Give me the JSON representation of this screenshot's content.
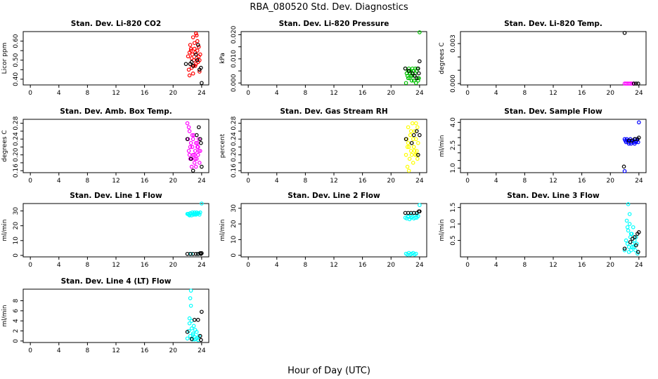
{
  "figure": {
    "title": "RBA_080520  Std. Dev. Diagnostics",
    "xlabel": "Hour of Day (UTC)"
  },
  "chart_data": [
    {
      "type": "scatter",
      "title": "Stan. Dev. Li-820 CO2",
      "ylabel": "Licor ppm",
      "xlim": [
        -1,
        25
      ],
      "ylim": [
        0.37,
        0.65
      ],
      "xticks": [
        0,
        4,
        8,
        12,
        16,
        20,
        24
      ],
      "yticks": [
        0.4,
        0.45,
        0.5,
        0.55,
        0.6
      ],
      "ytick_labels": [
        "0.40",
        "",
        "0.50",
        "",
        "0.60"
      ],
      "series": [
        {
          "name": "red",
          "color": "#ff0000",
          "x": [
            22.1,
            22.3,
            22.4,
            22.5,
            22.6,
            22.7,
            22.8,
            22.9,
            23.0,
            23.1,
            23.2,
            23.3,
            23.4,
            23.5,
            23.6,
            23.7,
            23.8,
            22.2,
            22.4,
            22.6,
            22.8,
            23.0,
            23.2,
            23.4,
            23.6,
            22.5,
            22.9,
            23.3,
            23.7,
            22.3,
            23.1
          ],
          "y": [
            0.52,
            0.54,
            0.48,
            0.55,
            0.46,
            0.53,
            0.62,
            0.5,
            0.56,
            0.47,
            0.64,
            0.51,
            0.6,
            0.49,
            0.57,
            0.44,
            0.53,
            0.45,
            0.58,
            0.51,
            0.43,
            0.59,
            0.48,
            0.55,
            0.52,
            0.56,
            0.47,
            0.63,
            0.5,
            0.42,
            0.54
          ]
        },
        {
          "name": "black",
          "color": "#000000",
          "x": [
            21.8,
            22.4,
            22.8,
            23.2,
            23.5,
            23.7,
            23.9,
            24.0,
            23.4,
            22.6
          ],
          "y": [
            0.48,
            0.48,
            0.47,
            0.53,
            0.58,
            0.45,
            0.46,
            0.38,
            0.5,
            0.49
          ]
        }
      ]
    },
    {
      "type": "scatter",
      "title": "Stan. Dev. Li-820 Pressure",
      "ylabel": "kPa",
      "xlim": [
        -1,
        25
      ],
      "ylim": [
        -0.0008,
        0.0213
      ],
      "xticks": [
        0,
        4,
        8,
        12,
        16,
        20,
        24
      ],
      "yticks": [
        0.0,
        0.005,
        0.01,
        0.015,
        0.02
      ],
      "ytick_labels": [
        "0.000",
        "",
        "0.010",
        "",
        "0.020"
      ],
      "series": [
        {
          "name": "green",
          "color": "#00c000",
          "x": [
            22.0,
            22.2,
            22.4,
            22.6,
            22.8,
            23.0,
            23.2,
            23.4,
            23.6,
            23.8,
            22.1,
            22.3,
            22.5,
            22.7,
            22.9,
            23.1,
            23.3,
            23.5,
            23.7,
            23.9,
            22.2,
            22.6,
            23.0,
            23.4,
            23.8,
            24.0,
            22.4,
            23.2
          ],
          "y": [
            0.006,
            0.004,
            0.005,
            0.002,
            0.003,
            0.006,
            0.001,
            0.004,
            0.005,
            0.002,
            0.0,
            0.003,
            0.006,
            0.004,
            0.001,
            0.005,
            0.003,
            0.0,
            0.006,
            0.002,
            0.004,
            0.005,
            0.003,
            0.006,
            0.001,
            0.021,
            0.002,
            0.005
          ]
        },
        {
          "name": "black",
          "color": "#000000",
          "x": [
            22.0,
            22.5,
            23.0,
            23.3,
            23.6,
            23.9,
            24.0,
            23.8
          ],
          "y": [
            0.006,
            0.005,
            0.004,
            0.003,
            0.002,
            0.004,
            0.009,
            0.006
          ]
        }
      ]
    },
    {
      "type": "scatter",
      "title": "Stan. Dev. Li-820 Temp.",
      "ylabel": "degrees C",
      "xlim": [
        -1,
        25
      ],
      "ylim": [
        -0.0001,
        0.0039
      ],
      "xticks": [
        0,
        4,
        8,
        12,
        16,
        20,
        24
      ],
      "yticks": [
        0.0,
        0.001,
        0.002,
        0.003
      ],
      "ytick_labels": [
        "0.000",
        "",
        "",
        "0.003"
      ],
      "series": [
        {
          "name": "magenta",
          "color": "#ff00ff",
          "x": [
            22.0,
            22.2,
            22.4,
            22.6,
            22.8,
            23.0,
            23.2
          ],
          "y": [
            0.0,
            0.0,
            0.0,
            0.0,
            0.0,
            0.0,
            0.0
          ]
        },
        {
          "name": "black",
          "color": "#000000",
          "x": [
            22.0,
            23.3,
            23.6,
            23.9
          ],
          "y": [
            0.0038,
            0.0,
            0.0,
            0.0
          ]
        }
      ]
    },
    {
      "type": "scatter",
      "title": "Stan. Dev. Amb. Box Temp.",
      "ylabel": "degrees C",
      "xlim": [
        -1,
        25
      ],
      "ylim": [
        0.155,
        0.29
      ],
      "xticks": [
        0,
        4,
        8,
        12,
        16,
        20,
        24
      ],
      "yticks": [
        0.16,
        0.18,
        0.2,
        0.22,
        0.24,
        0.26,
        0.28
      ],
      "ytick_labels": [
        "0.16",
        "",
        "0.20",
        "",
        "0.24",
        "",
        "0.28"
      ],
      "series": [
        {
          "name": "magenta",
          "color": "#ff00ff",
          "x": [
            22.0,
            22.1,
            22.2,
            22.3,
            22.4,
            22.5,
            22.6,
            22.7,
            22.8,
            22.9,
            23.0,
            23.1,
            23.2,
            23.3,
            23.4,
            23.5,
            23.6,
            23.7,
            23.8,
            22.2,
            22.4,
            22.6,
            22.8,
            23.0,
            23.2,
            23.4,
            23.6,
            22.3,
            22.7,
            23.1,
            23.5
          ],
          "y": [
            0.28,
            0.24,
            0.21,
            0.26,
            0.19,
            0.23,
            0.17,
            0.22,
            0.2,
            0.25,
            0.18,
            0.21,
            0.23,
            0.19,
            0.22,
            0.2,
            0.24,
            0.18,
            0.21,
            0.27,
            0.22,
            0.19,
            0.24,
            0.2,
            0.17,
            0.23,
            0.21,
            0.2,
            0.25,
            0.19,
            0.22
          ]
        },
        {
          "name": "black",
          "color": "#000000",
          "x": [
            22.0,
            22.5,
            22.8,
            23.3,
            23.6,
            23.8,
            23.9,
            24.0
          ],
          "y": [
            0.24,
            0.19,
            0.16,
            0.25,
            0.27,
            0.24,
            0.23,
            0.17
          ]
        }
      ]
    },
    {
      "type": "scatter",
      "title": "Stan. Dev. Gas Stream RH",
      "ylabel": "percent",
      "xlim": [
        -1,
        25
      ],
      "ylim": [
        0.155,
        0.29
      ],
      "xticks": [
        0,
        4,
        8,
        12,
        16,
        20,
        24
      ],
      "yticks": [
        0.16,
        0.18,
        0.2,
        0.22,
        0.24,
        0.26,
        0.28
      ],
      "ytick_labels": [
        "0.16",
        "",
        "0.20",
        "",
        "0.24",
        "",
        "0.28"
      ],
      "series": [
        {
          "name": "yellow",
          "color": "#ffff00",
          "x": [
            22.1,
            22.2,
            22.3,
            22.4,
            22.5,
            22.6,
            22.7,
            22.8,
            22.9,
            23.0,
            23.1,
            23.2,
            23.3,
            23.4,
            23.5,
            23.6,
            23.7,
            23.8,
            22.3,
            22.5,
            22.7,
            22.9,
            23.1,
            23.3,
            23.5,
            23.7,
            22.4,
            22.8,
            23.2,
            23.6
          ],
          "y": [
            0.2,
            0.24,
            0.17,
            0.27,
            0.22,
            0.19,
            0.25,
            0.21,
            0.23,
            0.28,
            0.18,
            0.22,
            0.26,
            0.2,
            0.24,
            0.21,
            0.27,
            0.23,
            0.22,
            0.16,
            0.25,
            0.2,
            0.24,
            0.21,
            0.28,
            0.19,
            0.23,
            0.26,
            0.22,
            0.2
          ]
        },
        {
          "name": "black",
          "color": "#000000",
          "x": [
            22.1,
            22.9,
            23.2,
            23.6,
            23.8,
            24.0
          ],
          "y": [
            0.24,
            0.23,
            0.25,
            0.26,
            0.2,
            0.25
          ]
        }
      ]
    },
    {
      "type": "scatter",
      "title": "Stan. Dev. Sample Flow",
      "ylabel": "ml/min",
      "xlim": [
        -1,
        25
      ],
      "ylim": [
        0.7,
        4.2
      ],
      "xticks": [
        0,
        4,
        8,
        12,
        16,
        20,
        24
      ],
      "yticks": [
        1.0,
        1.5,
        2.0,
        2.5,
        3.0,
        3.5,
        4.0
      ],
      "ytick_labels": [
        "1.0",
        "",
        "",
        "2.5",
        "",
        "",
        "4.0"
      ],
      "series": [
        {
          "name": "blue",
          "color": "#0000ff",
          "x": [
            22.0,
            22.2,
            22.4,
            22.6,
            22.8,
            23.0,
            23.2,
            23.4,
            23.6,
            23.8,
            22.1,
            22.3,
            22.5,
            22.7,
            22.9,
            23.1,
            23.3,
            23.5,
            23.7,
            22.0,
            24.0,
            23.9
          ],
          "y": [
            2.9,
            2.7,
            2.8,
            2.6,
            2.9,
            2.7,
            2.8,
            2.6,
            2.7,
            2.9,
            2.8,
            2.9,
            2.7,
            2.8,
            2.6,
            2.8,
            2.7,
            2.9,
            2.8,
            0.8,
            4.0,
            2.7
          ]
        },
        {
          "name": "black",
          "color": "#000000",
          "x": [
            21.9,
            22.6,
            23.0,
            23.4,
            23.8,
            24.0
          ],
          "y": [
            1.1,
            2.8,
            2.8,
            2.9,
            2.9,
            3.0
          ]
        }
      ]
    },
    {
      "type": "scatter",
      "title": "Stan. Dev. Line 1 Flow",
      "ylabel": "ml/min",
      "xlim": [
        -1,
        25
      ],
      "ylim": [
        -1,
        35
      ],
      "xticks": [
        0,
        4,
        8,
        12,
        16,
        20,
        24
      ],
      "yticks": [
        0,
        10,
        20,
        30
      ],
      "ytick_labels": [
        "0",
        "10",
        "20",
        "30"
      ],
      "series": [
        {
          "name": "cyan",
          "color": "#00ffff",
          "x": [
            22.0,
            22.2,
            22.4,
            22.6,
            22.8,
            23.0,
            23.2,
            23.4,
            23.6,
            23.8,
            22.1,
            22.3,
            22.5,
            22.7,
            22.9,
            23.1,
            23.3,
            23.5,
            23.7,
            24.0,
            22.5,
            23.5
          ],
          "y": [
            28,
            27.5,
            28.5,
            27,
            28,
            29,
            27.5,
            28,
            28.5,
            29,
            28,
            27,
            28,
            29,
            27.5,
            28,
            29,
            28.5,
            27.5,
            35,
            1,
            1
          ]
        },
        {
          "name": "black",
          "color": "#000000",
          "x": [
            22.0,
            22.4,
            22.8,
            23.2,
            23.5,
            23.8,
            24.0,
            23.9
          ],
          "y": [
            1,
            1,
            1,
            1,
            1,
            1.5,
            1.5,
            1
          ]
        }
      ]
    },
    {
      "type": "scatter",
      "title": "Stan. Dev. Line 2 Flow",
      "ylabel": "ml/min",
      "xlim": [
        -1,
        25
      ],
      "ylim": [
        -1,
        33
      ],
      "xticks": [
        0,
        4,
        8,
        12,
        16,
        20,
        24
      ],
      "yticks": [
        0,
        10,
        20,
        30
      ],
      "ytick_labels": [
        "0",
        "10",
        "20",
        "30"
      ],
      "series": [
        {
          "name": "cyan",
          "color": "#00ffff",
          "x": [
            22.0,
            22.2,
            22.4,
            22.6,
            22.8,
            23.0,
            23.2,
            23.4,
            23.6,
            23.8,
            22.1,
            22.3,
            22.5,
            22.7,
            22.9,
            23.1,
            23.3,
            23.5,
            22.4,
            22.8,
            23.2,
            23.6,
            24.0
          ],
          "y": [
            24,
            23.5,
            24.5,
            23,
            24,
            24.5,
            23.5,
            24,
            24,
            25,
            1,
            0.5,
            1.5,
            0.5,
            1,
            1.5,
            0.5,
            1,
            25,
            26,
            27,
            26,
            32
          ]
        },
        {
          "name": "black",
          "color": "#000000",
          "x": [
            22.0,
            22.4,
            22.8,
            23.2,
            23.6,
            23.9,
            24.0
          ],
          "y": [
            27,
            27,
            27,
            27,
            27,
            28,
            28
          ]
        }
      ]
    },
    {
      "type": "scatter",
      "title": "Stan. Dev. Line 3 Flow",
      "ylabel": "ml/min",
      "xlim": [
        -1,
        25
      ],
      "ylim": [
        0,
        1.62
      ],
      "xticks": [
        0,
        4,
        8,
        12,
        16,
        20,
        24
      ],
      "yticks": [
        0.5,
        1.0,
        1.5
      ],
      "ytick_labels": [
        "0.5",
        "1.0",
        "1.5"
      ],
      "series": [
        {
          "name": "cyan",
          "color": "#00ffff",
          "x": [
            22.0,
            22.2,
            22.3,
            22.4,
            22.5,
            22.6,
            22.7,
            22.8,
            22.9,
            23.0,
            23.1,
            23.2,
            23.3,
            23.4,
            23.5,
            23.6,
            23.7,
            23.8,
            22.5,
            22.7,
            22.9,
            23.1,
            22.6,
            22.4
          ],
          "y": [
            0.2,
            0.5,
            1.1,
            0.4,
            0.8,
            0.3,
            1.3,
            0.6,
            0.2,
            0.7,
            0.4,
            0.9,
            0.3,
            0.5,
            0.2,
            0.6,
            0.4,
            0.1,
            1.6,
            1.0,
            0.7,
            0.3,
            0.15,
            0.9
          ]
        },
        {
          "name": "black",
          "color": "#000000",
          "x": [
            22.0,
            22.8,
            23.1,
            23.4,
            23.6,
            23.8,
            24.0,
            23.9
          ],
          "y": [
            0.25,
            0.45,
            0.55,
            0.6,
            0.35,
            0.7,
            0.75,
            0.15
          ]
        }
      ]
    },
    {
      "type": "scatter",
      "title": "Stan. Dev. Line 4 (LT) Flow",
      "ylabel": "ml/min",
      "xlim": [
        -1,
        25
      ],
      "ylim": [
        -0.3,
        10.3
      ],
      "xticks": [
        0,
        4,
        8,
        12,
        16,
        20,
        24
      ],
      "yticks": [
        0,
        2,
        4,
        6,
        8
      ],
      "ytick_labels": [
        "0",
        "2",
        "4",
        "6",
        "8"
      ],
      "series": [
        {
          "name": "cyan",
          "color": "#00ffff",
          "x": [
            22.0,
            22.2,
            22.3,
            22.4,
            22.5,
            22.6,
            22.7,
            22.8,
            22.9,
            23.0,
            23.1,
            23.2,
            23.3,
            23.4,
            23.5,
            23.6,
            22.4,
            22.5,
            22.6,
            22.3,
            22.8,
            23.0
          ],
          "y": [
            0.5,
            2.0,
            3.5,
            1.0,
            10.0,
            2.5,
            0.3,
            1.5,
            3.0,
            0.8,
            2.2,
            0.4,
            1.8,
            0.6,
            0.2,
            1.0,
            8.5,
            7.0,
            4.0,
            4.5,
            1.2,
            0.3
          ]
        },
        {
          "name": "black",
          "color": "#000000",
          "x": [
            22.0,
            22.6,
            23.0,
            23.5,
            23.8,
            24.0,
            23.9
          ],
          "y": [
            1.8,
            0.4,
            4.2,
            4.2,
            1.0,
            5.8,
            0.2
          ]
        }
      ]
    }
  ]
}
